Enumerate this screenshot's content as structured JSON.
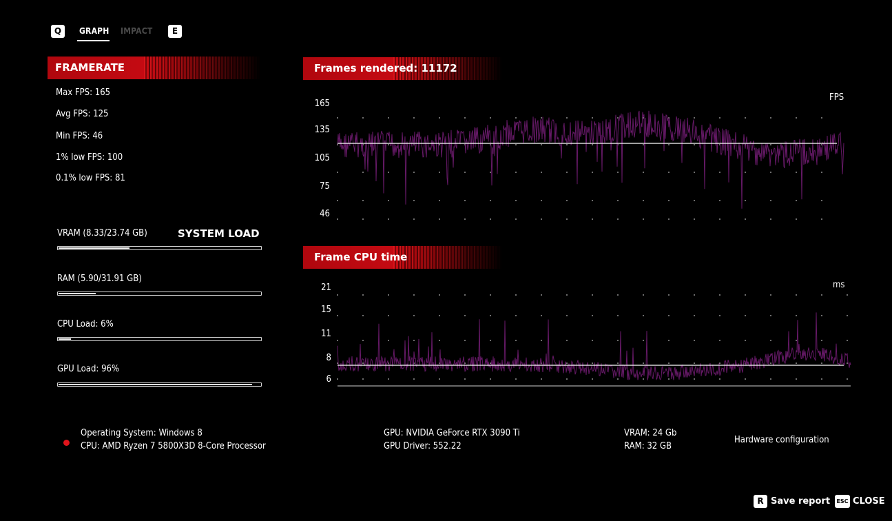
{
  "tabs": {
    "left_key": "Q",
    "right_key": "E",
    "items": [
      {
        "label": "GRAPH",
        "active": true
      },
      {
        "label": "IMPACT",
        "active": false
      }
    ]
  },
  "framerate": {
    "title": "FRAMERATE",
    "stats": [
      "Max FPS: 165",
      "Avg FPS: 125",
      "Min FPS: 46",
      "1% low FPS: 100",
      "0.1% low FPS: 81"
    ]
  },
  "system_load": {
    "title": "SYSTEM LOAD",
    "bars": [
      {
        "label": "VRAM (8.33/23.74 GB)",
        "fraction": 0.351
      },
      {
        "label": "RAM (5.90/31.91 GB)",
        "fraction": 0.185
      },
      {
        "label": "CPU Load: 6%",
        "fraction": 0.06
      },
      {
        "label": "GPU Load: 96%",
        "fraction": 0.96
      }
    ]
  },
  "fps_chart": {
    "banner": "Frames rendered: 11172",
    "unit": "FPS",
    "y_ticks": [
      "165",
      "135",
      "105",
      "75",
      "46"
    ],
    "avg_line": 125
  },
  "cpu_chart": {
    "banner": "Frame CPU time",
    "unit": "ms",
    "y_ticks": [
      "21",
      "15",
      "11",
      "8",
      "6"
    ],
    "avg_line": 7.8
  },
  "hardware": {
    "os": "Operating System: Windows 8",
    "cpu": "CPU: AMD Ryzen 7 5800X3D 8-Core Processor",
    "gpu": "GPU: NVIDIA GeForce RTX 3090 Ti",
    "driver": "GPU Driver: 552.22",
    "vram": "VRAM: 24 Gb",
    "ram": "RAM: 32 GB",
    "link": "Hardware configuration"
  },
  "footer": {
    "save_key": "R",
    "save_label": "Save report",
    "close_key": "ESC",
    "close_label": "CLOSE"
  },
  "colors": {
    "accent_red": "#c40a12",
    "series_purple": "#6a1a6b",
    "background": "#000000"
  }
}
